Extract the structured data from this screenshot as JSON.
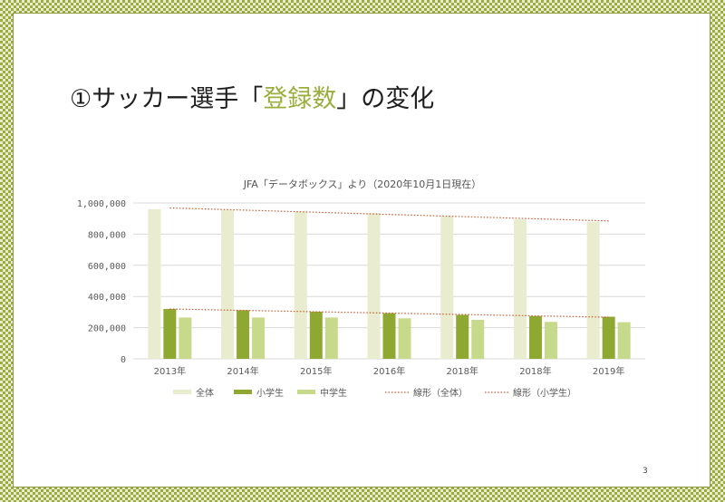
{
  "slide": {
    "title_prefix": "①サッカー選手「",
    "title_accent": "登録数",
    "title_suffix": "」の変化",
    "page_number": "3"
  },
  "colors": {
    "border_pattern": "#9bab3c",
    "title_accent": "#9aae3c",
    "series_total": "#e9eccf",
    "series_elementary": "#8ea832",
    "series_junior": "#c7d98a",
    "trend_line": "#c75a2f",
    "grid": "#d9d9d9"
  },
  "chart_data": {
    "type": "bar",
    "title": "JFA「データボックス」より（2020年10月1日現在）",
    "categories": [
      "2013年",
      "2014年",
      "2015年",
      "2016年",
      "2018年",
      "2018年",
      "2019年"
    ],
    "series": [
      {
        "name": "全体",
        "values": [
          960000,
          955000,
          945000,
          935000,
          915000,
          895000,
          880000
        ]
      },
      {
        "name": "小学生",
        "values": [
          320000,
          312000,
          302000,
          293000,
          282000,
          274000,
          270000
        ]
      },
      {
        "name": "中学生",
        "values": [
          265000,
          265000,
          265000,
          260000,
          250000,
          237000,
          235000
        ]
      }
    ],
    "trendlines": [
      {
        "name": "線形（全体）",
        "series": "全体"
      },
      {
        "name": "線形（小学生）",
        "series": "小学生"
      }
    ],
    "ylim": [
      0,
      1000000
    ],
    "yticks": [
      "0",
      "200,000",
      "400,000",
      "600,000",
      "800,000",
      "1,000,000"
    ],
    "legend_position": "bottom",
    "grid": true
  }
}
